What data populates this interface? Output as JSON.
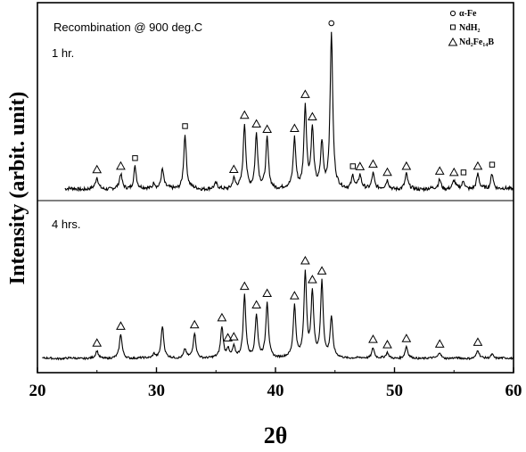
{
  "chart_data": {
    "type": "line",
    "title": "Recombination @ 900 deg.C",
    "xlabel": "2θ",
    "ylabel": "Intensity (arbit. unit)",
    "xlim": [
      20,
      60
    ],
    "xticks": [
      "20",
      "30",
      "40",
      "50",
      "60"
    ],
    "grid": false,
    "legend_position": "top-right",
    "legend": [
      {
        "marker": "circle",
        "name": "α-Fe"
      },
      {
        "marker": "square",
        "name": "NdH₂"
      },
      {
        "marker": "triangle",
        "name": "Nd₂Fe₁₄B"
      }
    ],
    "series": [
      {
        "label": "1 hr.",
        "baseline": 0.06,
        "peaks": [
          {
            "x": 25.0,
            "h": 0.07,
            "phase": "triangle"
          },
          {
            "x": 27.0,
            "h": 0.09,
            "phase": "triangle"
          },
          {
            "x": 28.2,
            "h": 0.14,
            "phase": "square"
          },
          {
            "x": 29.8,
            "h": 0.04
          },
          {
            "x": 30.5,
            "h": 0.12
          },
          {
            "x": 32.4,
            "h": 0.34,
            "phase": "square"
          },
          {
            "x": 35.0,
            "h": 0.03
          },
          {
            "x": 36.5,
            "h": 0.06,
            "phase": "triangle"
          },
          {
            "x": 37.4,
            "h": 0.4,
            "phase": "triangle"
          },
          {
            "x": 38.4,
            "h": 0.34,
            "phase": "triangle"
          },
          {
            "x": 39.3,
            "h": 0.31,
            "phase": "triangle"
          },
          {
            "x": 41.6,
            "h": 0.31,
            "phase": "triangle"
          },
          {
            "x": 42.5,
            "h": 0.51,
            "phase": "triangle"
          },
          {
            "x": 43.1,
            "h": 0.36,
            "phase": "triangle"
          },
          {
            "x": 43.9,
            "h": 0.28
          },
          {
            "x": 44.7,
            "h": 0.97,
            "phase": "circle"
          },
          {
            "x": 46.5,
            "h": 0.08,
            "phase": "square"
          },
          {
            "x": 47.1,
            "h": 0.08,
            "phase": "triangle"
          },
          {
            "x": 48.2,
            "h": 0.1,
            "phase": "triangle"
          },
          {
            "x": 49.4,
            "h": 0.05,
            "phase": "triangle"
          },
          {
            "x": 51.0,
            "h": 0.09,
            "phase": "triangle"
          },
          {
            "x": 53.8,
            "h": 0.06,
            "phase": "triangle"
          },
          {
            "x": 55.0,
            "h": 0.05,
            "phase": "triangle"
          },
          {
            "x": 55.8,
            "h": 0.05,
            "phase": "square"
          },
          {
            "x": 57.0,
            "h": 0.09,
            "phase": "triangle"
          },
          {
            "x": 58.2,
            "h": 0.1,
            "phase": "square"
          }
        ]
      },
      {
        "label": "4 hrs.",
        "baseline": 0.06,
        "peaks": [
          {
            "x": 25.0,
            "h": 0.08,
            "phase": "triangle"
          },
          {
            "x": 27.0,
            "h": 0.27,
            "phase": "triangle"
          },
          {
            "x": 29.8,
            "h": 0.05
          },
          {
            "x": 30.5,
            "h": 0.36
          },
          {
            "x": 32.4,
            "h": 0.1
          },
          {
            "x": 33.2,
            "h": 0.28,
            "phase": "triangle"
          },
          {
            "x": 35.5,
            "h": 0.35,
            "phase": "triangle"
          },
          {
            "x": 36.0,
            "h": 0.1,
            "phase": "triangle"
          },
          {
            "x": 36.5,
            "h": 0.12,
            "phase": "triangle"
          },
          {
            "x": 37.4,
            "h": 0.7,
            "phase": "triangle"
          },
          {
            "x": 38.4,
            "h": 0.48,
            "phase": "triangle"
          },
          {
            "x": 39.3,
            "h": 0.62,
            "phase": "triangle"
          },
          {
            "x": 41.6,
            "h": 0.58,
            "phase": "triangle"
          },
          {
            "x": 42.5,
            "h": 0.95,
            "phase": "triangle"
          },
          {
            "x": 43.1,
            "h": 0.72,
            "phase": "triangle"
          },
          {
            "x": 43.9,
            "h": 0.85,
            "phase": "triangle"
          },
          {
            "x": 44.7,
            "h": 0.45
          },
          {
            "x": 48.2,
            "h": 0.12,
            "phase": "triangle"
          },
          {
            "x": 49.4,
            "h": 0.06,
            "phase": "triangle"
          },
          {
            "x": 51.0,
            "h": 0.13,
            "phase": "triangle"
          },
          {
            "x": 53.8,
            "h": 0.07,
            "phase": "triangle"
          },
          {
            "x": 57.0,
            "h": 0.09,
            "phase": "triangle"
          },
          {
            "x": 58.2,
            "h": 0.05
          }
        ]
      }
    ]
  }
}
